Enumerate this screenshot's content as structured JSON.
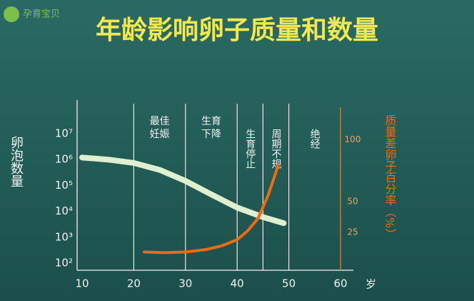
{
  "watermark": "孕育宝贝",
  "chart_data": {
    "type": "line",
    "title": "年龄影响卵子质量和数量",
    "y_label": "卵泡数量",
    "y2_label": "质量差卵子百分率（%）",
    "x_label": "岁",
    "xlim": [
      10,
      60
    ],
    "xticks": [
      10,
      20,
      30,
      40,
      50,
      60
    ],
    "ylim": [
      100,
      10000000
    ],
    "log_y": true,
    "yticks": [
      {
        "value": 100,
        "label": "10²"
      },
      {
        "value": 1000,
        "label": "10³"
      },
      {
        "value": 10000,
        "label": "10⁴"
      },
      {
        "value": 100000,
        "label": "10⁵"
      },
      {
        "value": 1000000,
        "label": "10⁶"
      },
      {
        "value": 10000000,
        "label": "10⁷"
      }
    ],
    "y2lim": [
      0,
      105
    ],
    "y2ticks": [
      25,
      50,
      100
    ],
    "vlines": [
      20,
      30,
      40,
      45,
      50
    ],
    "annotations": [
      {
        "x": 25,
        "lines": [
          "最佳",
          "妊娠"
        ]
      },
      {
        "x": 35,
        "lines": [
          "生育",
          "下降"
        ]
      },
      {
        "x": 42.5,
        "vertical": true,
        "lines": [
          "生育停止"
        ]
      },
      {
        "x": 47.5,
        "vertical": true,
        "lines": [
          "周期不规"
        ]
      },
      {
        "x": 55,
        "vertical": true,
        "lines": [
          "绝经"
        ]
      }
    ],
    "series": [
      {
        "name": "卵泡数量",
        "color": "#dff0d0",
        "x": [
          10,
          15,
          20,
          25,
          30,
          35,
          40,
          45,
          49
        ],
        "values": [
          1200000,
          1000000,
          740000,
          400000,
          150000,
          45000,
          14000,
          6000,
          3500
        ]
      },
      {
        "name": "质量差卵子百分率",
        "color": "#f06a10",
        "axis": "y2",
        "x": [
          22,
          26,
          30,
          34,
          37,
          40,
          42,
          44,
          46,
          48
        ],
        "values": [
          9,
          8.5,
          9,
          11,
          14,
          19,
          26,
          36,
          55,
          80
        ]
      }
    ]
  }
}
